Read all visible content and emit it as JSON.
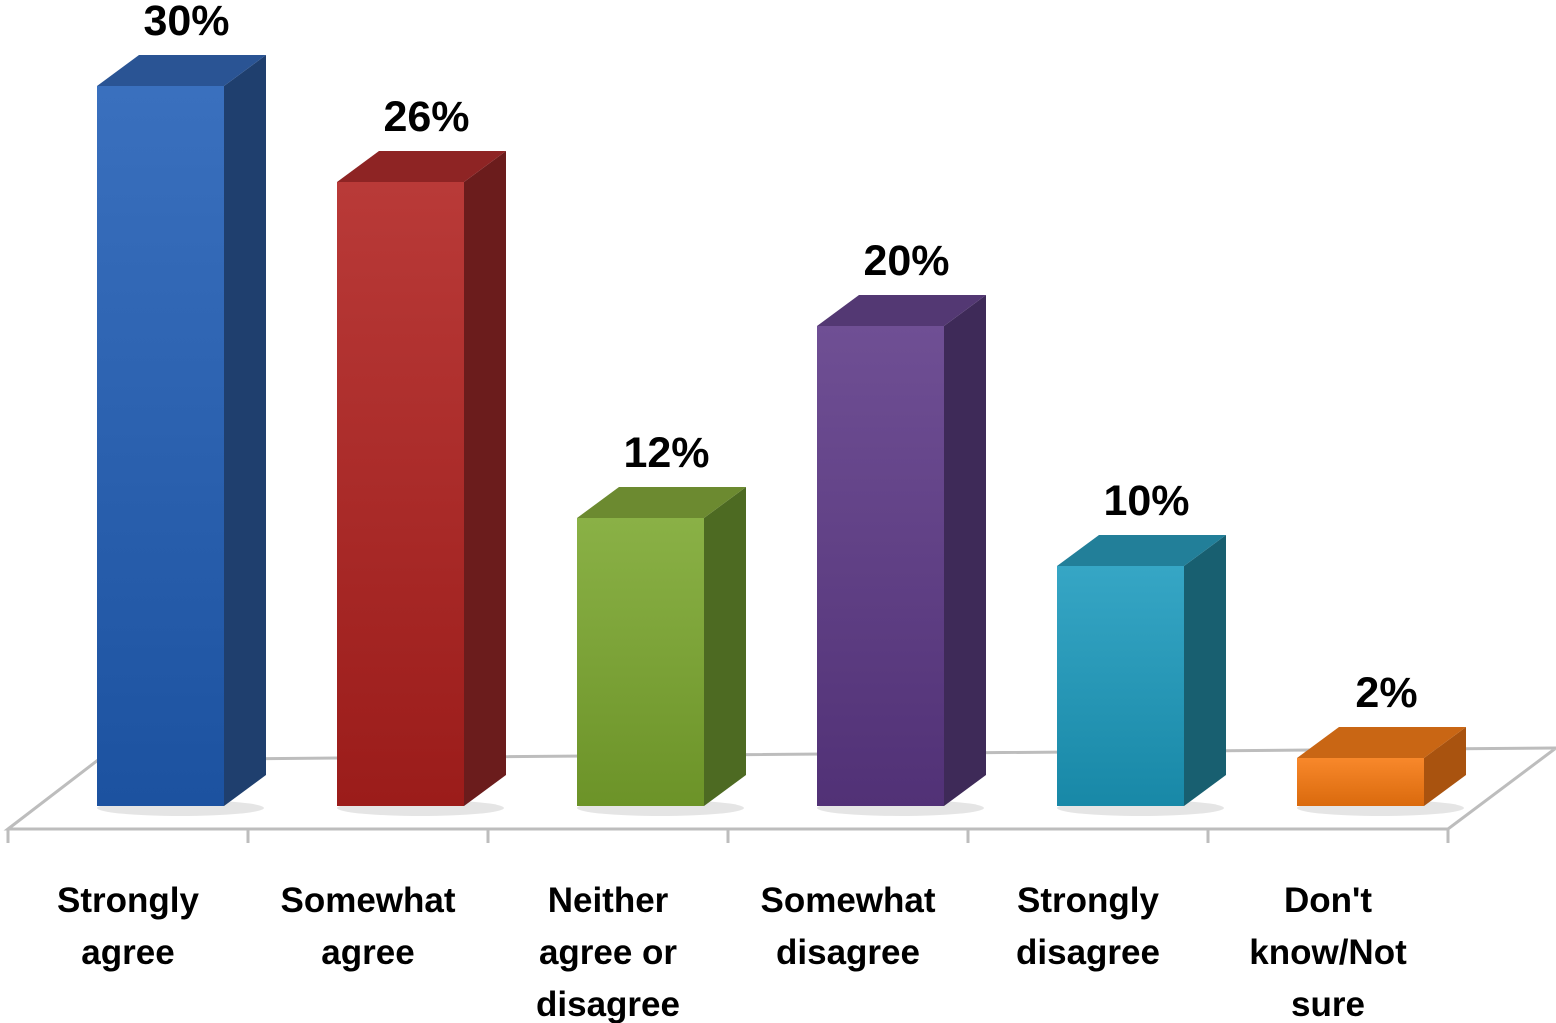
{
  "chart_data": {
    "type": "bar",
    "style": "3d-column",
    "title": "",
    "xlabel": "",
    "ylabel": "",
    "ylim": [
      0,
      30
    ],
    "grid": false,
    "legend": "none",
    "categories": [
      [
        "Strongly",
        "agree"
      ],
      [
        "Somewhat",
        "agree"
      ],
      [
        "Neither",
        "agree or",
        "disagree"
      ],
      [
        "Somewhat",
        "disagree"
      ],
      [
        "Strongly",
        "disagree"
      ],
      [
        "Don't",
        "know/Not",
        "sure"
      ]
    ],
    "values": [
      30,
      26,
      12,
      20,
      10,
      2
    ],
    "value_labels": [
      "30%",
      "26%",
      "12%",
      "20%",
      "10%",
      "2%"
    ],
    "colors": [
      "#2E64B2",
      "#AD2E2C",
      "#7EA53A",
      "#634388",
      "#2A9AB9",
      "#EC7C1F"
    ],
    "side_colors": [
      "#1F3F6E",
      "#6B1C1C",
      "#4D6A22",
      "#3E2A58",
      "#185F70",
      "#A9530F"
    ],
    "top_colors": [
      "#2A5494",
      "#8E2424",
      "#6C8A30",
      "#533873",
      "#227F99",
      "#C96614"
    ]
  }
}
